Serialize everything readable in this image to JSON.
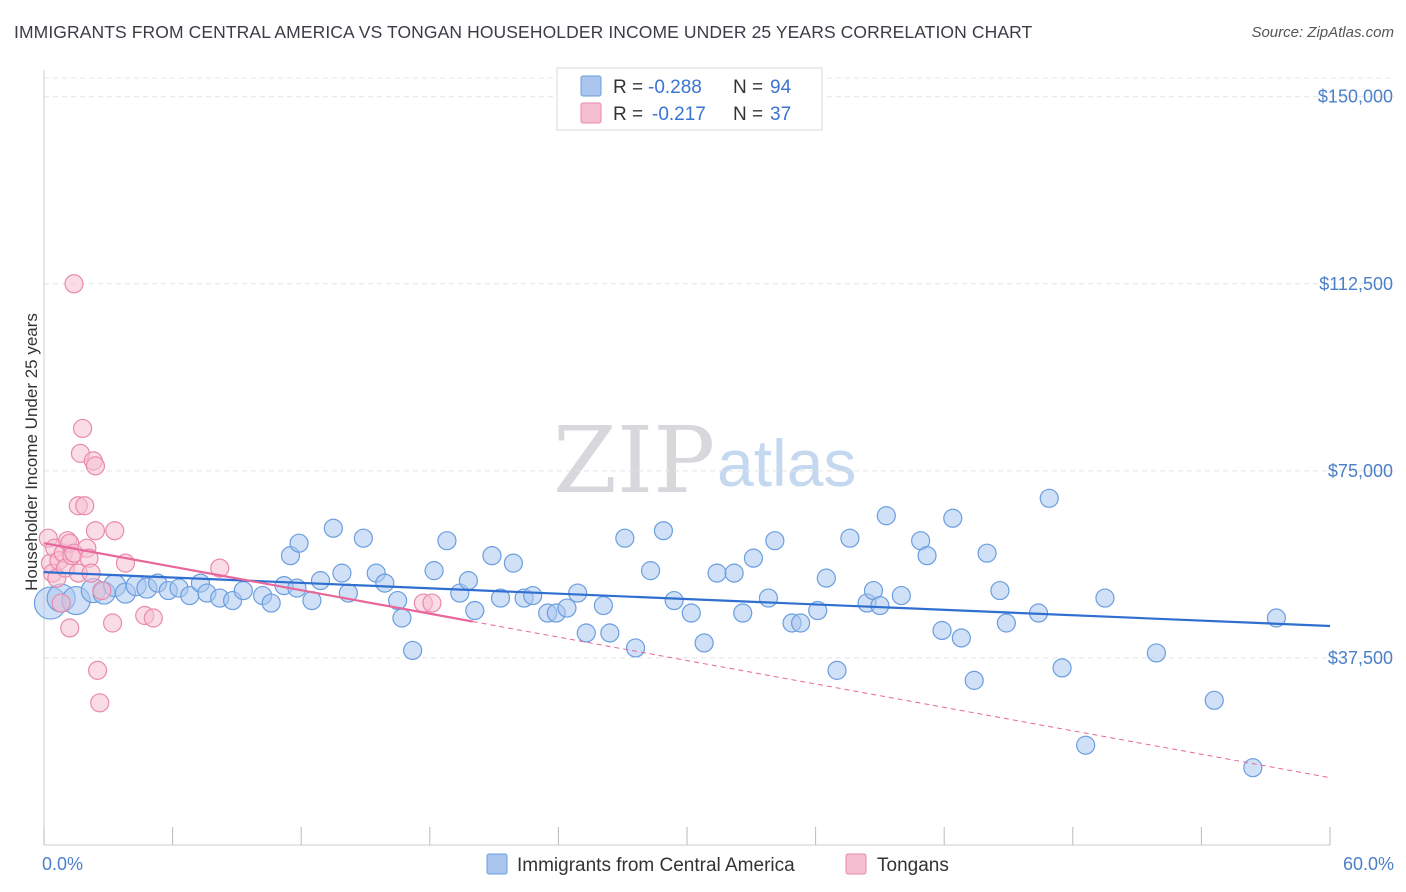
{
  "header": {
    "title": "IMMIGRANTS FROM CENTRAL AMERICA VS TONGAN HOUSEHOLDER INCOME UNDER 25 YEARS CORRELATION CHART",
    "source": "Source: ZipAtlas.com"
  },
  "watermark": {
    "part1": "ZIP",
    "part2": "atlas"
  },
  "colors": {
    "blue_fill": "#aac6ee",
    "blue_stroke": "#6a9ee0",
    "blue_line": "#2f6fd0",
    "pink_fill": "#f6bfd1",
    "pink_stroke": "#ea8aab",
    "pink_line": "#e8679a",
    "axis_text": "#4a7fc9"
  },
  "legend": {
    "rows": [
      {
        "r_label": "R = ",
        "r_value": "-0.288",
        "n_label": "N = ",
        "n_value": "94"
      },
      {
        "r_label": "R = ",
        "r_value": "-0.217",
        "n_label": "N = ",
        "n_value": "37"
      }
    ]
  },
  "bottom_legend": [
    "Immigrants from Central America",
    "Tongans"
  ],
  "chart_data": {
    "type": "scatter",
    "title": "IMMIGRANTS FROM CENTRAL AMERICA VS TONGAN HOUSEHOLDER INCOME UNDER 25 YEARS CORRELATION CHART",
    "xlabel": "",
    "ylabel": "Householder Income Under 25 years",
    "xlim": [
      0,
      60
    ],
    "ylim": [
      0,
      153750
    ],
    "x_tick_labels": [
      "0.0%",
      "60.0%"
    ],
    "y_ticks": [
      37500,
      75000,
      112500,
      150000
    ],
    "y_tick_labels": [
      "$37,500",
      "$75,000",
      "$112,500",
      "$150,000"
    ],
    "grid": true,
    "series": [
      {
        "name": "Immigrants from Central America",
        "R": -0.288,
        "N": 94,
        "trend": {
          "x": [
            0,
            60
          ],
          "y": [
            54700,
            43900
          ]
        },
        "points": [
          {
            "x": 0.3,
            "y": 48500,
            "s": 16
          },
          {
            "x": 0.8,
            "y": 49500,
            "s": 14
          },
          {
            "x": 1.5,
            "y": 49000,
            "s": 14
          },
          {
            "x": 2.3,
            "y": 51000,
            "s": 12
          },
          {
            "x": 2.8,
            "y": 50500,
            "s": 11
          },
          {
            "x": 3.3,
            "y": 52000,
            "s": 11
          },
          {
            "x": 3.8,
            "y": 50500,
            "s": 10
          },
          {
            "x": 4.3,
            "y": 52000,
            "s": 10
          },
          {
            "x": 4.8,
            "y": 51500,
            "s": 10
          },
          {
            "x": 5.3,
            "y": 52500,
            "s": 9
          },
          {
            "x": 5.8,
            "y": 51000,
            "s": 9
          },
          {
            "x": 6.3,
            "y": 51500,
            "s": 9
          },
          {
            "x": 6.8,
            "y": 50000,
            "s": 9
          },
          {
            "x": 7.3,
            "y": 52500,
            "s": 9
          },
          {
            "x": 7.6,
            "y": 50500,
            "s": 9
          },
          {
            "x": 8.2,
            "y": 49500,
            "s": 9
          },
          {
            "x": 8.8,
            "y": 49000,
            "s": 9
          },
          {
            "x": 9.3,
            "y": 51000,
            "s": 9
          },
          {
            "x": 10.2,
            "y": 50000,
            "s": 9
          },
          {
            "x": 10.6,
            "y": 48500,
            "s": 9
          },
          {
            "x": 11.2,
            "y": 52000,
            "s": 9
          },
          {
            "x": 11.8,
            "y": 51500,
            "s": 9
          },
          {
            "x": 11.5,
            "y": 58000,
            "s": 9
          },
          {
            "x": 11.9,
            "y": 60500,
            "s": 9
          },
          {
            "x": 12.5,
            "y": 49000,
            "s": 9
          },
          {
            "x": 12.9,
            "y": 53000,
            "s": 9
          },
          {
            "x": 13.5,
            "y": 63500,
            "s": 9
          },
          {
            "x": 13.9,
            "y": 54500,
            "s": 9
          },
          {
            "x": 14.2,
            "y": 50500,
            "s": 9
          },
          {
            "x": 14.9,
            "y": 61500,
            "s": 9
          },
          {
            "x": 15.5,
            "y": 54500,
            "s": 9
          },
          {
            "x": 15.9,
            "y": 52500,
            "s": 9
          },
          {
            "x": 16.5,
            "y": 49000,
            "s": 9
          },
          {
            "x": 16.7,
            "y": 45500,
            "s": 9
          },
          {
            "x": 17.2,
            "y": 39000,
            "s": 9
          },
          {
            "x": 18.2,
            "y": 55000,
            "s": 9
          },
          {
            "x": 18.8,
            "y": 61000,
            "s": 9
          },
          {
            "x": 19.4,
            "y": 50500,
            "s": 9
          },
          {
            "x": 19.8,
            "y": 53000,
            "s": 9
          },
          {
            "x": 20.1,
            "y": 47000,
            "s": 9
          },
          {
            "x": 20.9,
            "y": 58000,
            "s": 9
          },
          {
            "x": 21.3,
            "y": 49500,
            "s": 9
          },
          {
            "x": 21.9,
            "y": 56500,
            "s": 9
          },
          {
            "x": 22.4,
            "y": 49500,
            "s": 9
          },
          {
            "x": 22.8,
            "y": 50000,
            "s": 9
          },
          {
            "x": 23.5,
            "y": 46500,
            "s": 9
          },
          {
            "x": 23.9,
            "y": 46500,
            "s": 9
          },
          {
            "x": 24.4,
            "y": 47500,
            "s": 9
          },
          {
            "x": 24.9,
            "y": 50500,
            "s": 9
          },
          {
            "x": 25.3,
            "y": 42500,
            "s": 9
          },
          {
            "x": 26.1,
            "y": 48000,
            "s": 9
          },
          {
            "x": 26.4,
            "y": 42500,
            "s": 9
          },
          {
            "x": 27.1,
            "y": 61500,
            "s": 9
          },
          {
            "x": 27.6,
            "y": 39500,
            "s": 9
          },
          {
            "x": 28.3,
            "y": 55000,
            "s": 9
          },
          {
            "x": 28.9,
            "y": 63000,
            "s": 9
          },
          {
            "x": 29.4,
            "y": 49000,
            "s": 9
          },
          {
            "x": 30.2,
            "y": 46500,
            "s": 9
          },
          {
            "x": 30.8,
            "y": 40500,
            "s": 9
          },
          {
            "x": 31.4,
            "y": 54500,
            "s": 9
          },
          {
            "x": 32.2,
            "y": 54500,
            "s": 9
          },
          {
            "x": 32.6,
            "y": 46500,
            "s": 9
          },
          {
            "x": 33.1,
            "y": 57500,
            "s": 9
          },
          {
            "x": 33.8,
            "y": 49500,
            "s": 9
          },
          {
            "x": 34.1,
            "y": 61000,
            "s": 9
          },
          {
            "x": 34.9,
            "y": 44500,
            "s": 9
          },
          {
            "x": 35.3,
            "y": 44500,
            "s": 9
          },
          {
            "x": 36.1,
            "y": 47000,
            "s": 9
          },
          {
            "x": 36.5,
            "y": 53500,
            "s": 9
          },
          {
            "x": 37.0,
            "y": 35000,
            "s": 9
          },
          {
            "x": 37.6,
            "y": 61500,
            "s": 9
          },
          {
            "x": 38.4,
            "y": 48500,
            "s": 9
          },
          {
            "x": 38.7,
            "y": 51000,
            "s": 9
          },
          {
            "x": 39.3,
            "y": 66000,
            "s": 9
          },
          {
            "x": 40.0,
            "y": 50000,
            "s": 9
          },
          {
            "x": 40.9,
            "y": 61000,
            "s": 9
          },
          {
            "x": 41.2,
            "y": 58000,
            "s": 9
          },
          {
            "x": 41.9,
            "y": 43000,
            "s": 9
          },
          {
            "x": 42.4,
            "y": 65500,
            "s": 9
          },
          {
            "x": 42.8,
            "y": 41500,
            "s": 9
          },
          {
            "x": 43.4,
            "y": 33000,
            "s": 9
          },
          {
            "x": 44.0,
            "y": 58500,
            "s": 9
          },
          {
            "x": 44.6,
            "y": 51000,
            "s": 9
          },
          {
            "x": 44.9,
            "y": 44500,
            "s": 9
          },
          {
            "x": 46.4,
            "y": 46500,
            "s": 9
          },
          {
            "x": 46.9,
            "y": 69500,
            "s": 9
          },
          {
            "x": 47.5,
            "y": 35500,
            "s": 9
          },
          {
            "x": 48.6,
            "y": 20000,
            "s": 9
          },
          {
            "x": 49.5,
            "y": 49500,
            "s": 9
          },
          {
            "x": 51.9,
            "y": 38500,
            "s": 9
          },
          {
            "x": 54.6,
            "y": 29000,
            "s": 9
          },
          {
            "x": 57.5,
            "y": 45500,
            "s": 9
          },
          {
            "x": 56.4,
            "y": 15500,
            "s": 9
          },
          {
            "x": 39.0,
            "y": 48000,
            "s": 9
          }
        ]
      },
      {
        "name": "Tongans",
        "R": -0.217,
        "N": 37,
        "trend": {
          "x": [
            0,
            20
          ],
          "y": [
            60500,
            44800
          ]
        },
        "trend_dashed": {
          "x": [
            20,
            60
          ],
          "y": [
            44800,
            13500
          ]
        },
        "points": [
          {
            "x": 0.2,
            "y": 61500,
            "s": 9
          },
          {
            "x": 0.3,
            "y": 56500,
            "s": 9
          },
          {
            "x": 0.4,
            "y": 54500,
            "s": 9
          },
          {
            "x": 0.5,
            "y": 59500,
            "s": 9
          },
          {
            "x": 0.6,
            "y": 53500,
            "s": 9
          },
          {
            "x": 0.7,
            "y": 57000,
            "s": 9
          },
          {
            "x": 0.8,
            "y": 48500,
            "s": 9
          },
          {
            "x": 0.9,
            "y": 58500,
            "s": 9
          },
          {
            "x": 1.0,
            "y": 55500,
            "s": 9
          },
          {
            "x": 1.1,
            "y": 61000,
            "s": 9
          },
          {
            "x": 1.2,
            "y": 60500,
            "s": 9
          },
          {
            "x": 1.3,
            "y": 58000,
            "s": 9
          },
          {
            "x": 1.4,
            "y": 58500,
            "s": 9
          },
          {
            "x": 1.2,
            "y": 43500,
            "s": 9
          },
          {
            "x": 1.4,
            "y": 112500,
            "s": 9
          },
          {
            "x": 1.6,
            "y": 54500,
            "s": 9
          },
          {
            "x": 1.6,
            "y": 68000,
            "s": 9
          },
          {
            "x": 1.7,
            "y": 78500,
            "s": 9
          },
          {
            "x": 1.8,
            "y": 83500,
            "s": 9
          },
          {
            "x": 1.9,
            "y": 68000,
            "s": 9
          },
          {
            "x": 2.0,
            "y": 59500,
            "s": 9
          },
          {
            "x": 2.1,
            "y": 57500,
            "s": 9
          },
          {
            "x": 2.2,
            "y": 54500,
            "s": 9
          },
          {
            "x": 2.3,
            "y": 77000,
            "s": 9
          },
          {
            "x": 2.4,
            "y": 76000,
            "s": 9
          },
          {
            "x": 2.4,
            "y": 63000,
            "s": 9
          },
          {
            "x": 2.5,
            "y": 35000,
            "s": 9
          },
          {
            "x": 2.6,
            "y": 28500,
            "s": 9
          },
          {
            "x": 2.7,
            "y": 51000,
            "s": 9
          },
          {
            "x": 3.2,
            "y": 44500,
            "s": 9
          },
          {
            "x": 3.3,
            "y": 63000,
            "s": 9
          },
          {
            "x": 3.8,
            "y": 56500,
            "s": 9
          },
          {
            "x": 4.7,
            "y": 46000,
            "s": 9
          },
          {
            "x": 5.1,
            "y": 45500,
            "s": 9
          },
          {
            "x": 8.2,
            "y": 55500,
            "s": 9
          },
          {
            "x": 17.7,
            "y": 48500,
            "s": 9
          },
          {
            "x": 18.1,
            "y": 48500,
            "s": 9
          }
        ]
      }
    ]
  }
}
